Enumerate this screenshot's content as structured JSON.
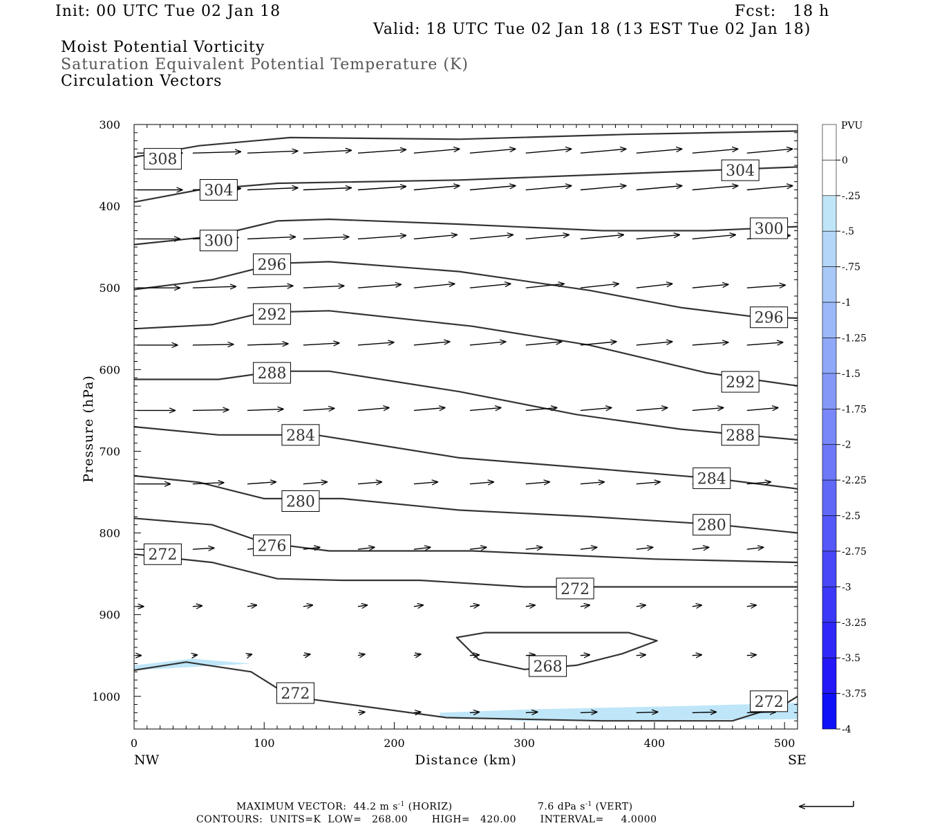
{
  "header": {
    "init": "Init: 00 UTC Tue 02 Jan 18",
    "fcst": "Fcst:   18 h",
    "valid": "Valid: 18 UTC Tue 02 Jan 18 (13 EST Tue 02 Jan 18)",
    "fields": [
      "Moist Potential Vorticity",
      "Saturation Equivalent Potential Temperature (K)",
      "Circulation Vectors"
    ]
  },
  "chart_data": {
    "type": "cross-section",
    "xlabel": "Distance (km)",
    "ylabel": "Pressure (hPa)",
    "xlim": [
      0,
      510
    ],
    "ylim": [
      300,
      1040
    ],
    "x_ticks": [
      "0",
      "100",
      "200",
      "300",
      "400",
      "500"
    ],
    "y_ticks": [
      "300",
      "400",
      "500",
      "600",
      "700",
      "800",
      "900",
      "1000"
    ],
    "x_ends": {
      "left": "NW",
      "right": "SE"
    },
    "colorbar": {
      "unit": "PVU",
      "labels": [
        "0",
        "-.25",
        "-.5",
        "-.75",
        "-1",
        "-1.25",
        "-1.5",
        "-1.75",
        "-2",
        "-2.25",
        "-2.5",
        "-2.75",
        "-3",
        "-3.25",
        "-3.5",
        "-3.75",
        "-4"
      ],
      "colors": [
        "#ffffff",
        "#ffffff",
        "#bfe6f8",
        "#b4d6f8",
        "#a8c8f8",
        "#9cb8f8",
        "#90a8f8",
        "#8498f8",
        "#7888f8",
        "#6c78f8",
        "#6068f8",
        "#5458f8",
        "#4848f8",
        "#3c38f8",
        "#3028f8",
        "#2418f8",
        "#1010f8"
      ]
    },
    "contours": [
      {
        "label": "308",
        "points": [
          [
            0,
            340
          ],
          [
            50,
            326
          ],
          [
            120,
            316
          ],
          [
            250,
            318
          ],
          [
            380,
            312
          ],
          [
            510,
            308
          ]
        ]
      },
      {
        "label": "304",
        "points": [
          [
            0,
            395
          ],
          [
            50,
            380
          ],
          [
            110,
            372
          ],
          [
            250,
            368
          ],
          [
            380,
            360
          ],
          [
            510,
            352
          ]
        ]
      },
      {
        "label": "300",
        "points": [
          [
            0,
            447
          ],
          [
            60,
            437
          ],
          [
            110,
            418
          ],
          [
            150,
            416
          ],
          [
            250,
            422
          ],
          [
            360,
            430
          ],
          [
            440,
            430
          ],
          [
            510,
            425
          ]
        ]
      },
      {
        "label": "296",
        "points": [
          [
            0,
            502
          ],
          [
            60,
            490
          ],
          [
            110,
            470
          ],
          [
            150,
            468
          ],
          [
            250,
            480
          ],
          [
            350,
            503
          ],
          [
            420,
            524
          ],
          [
            480,
            536
          ],
          [
            510,
            537
          ]
        ]
      },
      {
        "label": "292",
        "points": [
          [
            0,
            550
          ],
          [
            60,
            545
          ],
          [
            100,
            530
          ],
          [
            150,
            528
          ],
          [
            260,
            547
          ],
          [
            350,
            570
          ],
          [
            440,
            604
          ],
          [
            510,
            620
          ]
        ]
      },
      {
        "label": "288",
        "points": [
          [
            0,
            612
          ],
          [
            65,
            612
          ],
          [
            110,
            602
          ],
          [
            150,
            602
          ],
          [
            250,
            627
          ],
          [
            340,
            655
          ],
          [
            420,
            673
          ],
          [
            510,
            686
          ]
        ]
      },
      {
        "label": "284",
        "points": [
          [
            0,
            670
          ],
          [
            65,
            680
          ],
          [
            140,
            680
          ],
          [
            250,
            708
          ],
          [
            360,
            722
          ],
          [
            450,
            734
          ],
          [
            510,
            746
          ]
        ]
      },
      {
        "label": "280",
        "points": [
          [
            0,
            730
          ],
          [
            50,
            738
          ],
          [
            100,
            758
          ],
          [
            160,
            758
          ],
          [
            250,
            772
          ],
          [
            350,
            780
          ],
          [
            450,
            790
          ],
          [
            510,
            800
          ]
        ]
      },
      {
        "label": "276",
        "points": [
          [
            0,
            782
          ],
          [
            60,
            790
          ],
          [
            100,
            812
          ],
          [
            150,
            822
          ],
          [
            260,
            822
          ],
          [
            400,
            832
          ],
          [
            510,
            836
          ]
        ]
      },
      {
        "label": "272",
        "points": [
          [
            0,
            826
          ],
          [
            60,
            836
          ],
          [
            110,
            856
          ],
          [
            160,
            858
          ],
          [
            220,
            858
          ],
          [
            300,
            866
          ],
          [
            410,
            866
          ],
          [
            510,
            866
          ]
        ]
      },
      {
        "label": "268",
        "points": [
          [
            248,
            928
          ],
          [
            270,
            922
          ],
          [
            380,
            922
          ],
          [
            402,
            932
          ],
          [
            375,
            948
          ],
          [
            340,
            962
          ],
          [
            300,
            967
          ],
          [
            265,
            955
          ],
          [
            248,
            928
          ]
        ],
        "closed": true
      },
      {
        "label": "272",
        "points": [
          [
            0,
            968
          ],
          [
            40,
            958
          ],
          [
            90,
            970
          ],
          [
            120,
            1000
          ],
          [
            240,
            1026
          ],
          [
            360,
            1030
          ],
          [
            460,
            1030
          ],
          [
            500,
            1010
          ],
          [
            510,
            1000
          ]
        ]
      }
    ],
    "contour_labels": [
      {
        "text": "308",
        "x": 22,
        "p": 342
      },
      {
        "text": "304",
        "x": 65,
        "p": 380
      },
      {
        "text": "304",
        "x": 466,
        "p": 356
      },
      {
        "text": "300",
        "x": 65,
        "p": 442
      },
      {
        "text": "300",
        "x": 488,
        "p": 427
      },
      {
        "text": "296",
        "x": 106,
        "p": 471
      },
      {
        "text": "296",
        "x": 488,
        "p": 536
      },
      {
        "text": "292",
        "x": 106,
        "p": 532
      },
      {
        "text": "292",
        "x": 466,
        "p": 615
      },
      {
        "text": "288",
        "x": 106,
        "p": 604
      },
      {
        "text": "288",
        "x": 466,
        "p": 680
      },
      {
        "text": "284",
        "x": 128,
        "p": 680
      },
      {
        "text": "284",
        "x": 444,
        "p": 733
      },
      {
        "text": "280",
        "x": 128,
        "p": 761
      },
      {
        "text": "280",
        "x": 444,
        "p": 790
      },
      {
        "text": "276",
        "x": 106,
        "p": 815
      },
      {
        "text": "272",
        "x": 22,
        "p": 826
      },
      {
        "text": "272",
        "x": 339,
        "p": 868
      },
      {
        "text": "268",
        "x": 318,
        "p": 963
      },
      {
        "text": "272",
        "x": 124,
        "p": 996
      },
      {
        "text": "272",
        "x": 488,
        "p": 1006
      }
    ],
    "pv_shading": [
      {
        "value": -0.25,
        "points": [
          [
            0,
            962
          ],
          [
            45,
            954
          ],
          [
            90,
            960
          ],
          [
            0,
            968
          ]
        ]
      },
      {
        "value": -0.25,
        "points": [
          [
            235,
            1020
          ],
          [
            300,
            1016
          ],
          [
            420,
            1012
          ],
          [
            510,
            1008
          ],
          [
            510,
            1028
          ],
          [
            300,
            1030
          ],
          [
            235,
            1025
          ]
        ]
      }
    ],
    "vector_rows": [
      {
        "p": 335,
        "x": [
          0,
          43,
          85,
          128,
          170,
          213,
          256,
          299,
          341,
          384,
          427,
          469
        ],
        "u": [
          38,
          40,
          42,
          40,
          40,
          38,
          38,
          38,
          38,
          38,
          38,
          38
        ],
        "w": [
          0,
          -2,
          -3,
          -4,
          -5,
          -6,
          -6,
          -6,
          -6,
          -6,
          -6,
          -6
        ]
      },
      {
        "p": 380,
        "x": [
          0,
          43,
          85,
          128,
          170,
          213,
          256,
          299,
          341,
          384,
          427,
          469
        ],
        "u": [
          38,
          40,
          42,
          40,
          40,
          38,
          38,
          38,
          38,
          38,
          38,
          38
        ],
        "w": [
          0,
          -2,
          -3,
          -3,
          -5,
          -6,
          -6,
          -6,
          -6,
          -6,
          -6,
          -6
        ]
      },
      {
        "p": 440,
        "x": [
          0,
          43,
          85,
          128,
          170,
          213,
          256,
          299,
          341,
          384,
          427,
          469
        ],
        "u": [
          36,
          38,
          40,
          38,
          40,
          36,
          36,
          36,
          36,
          36,
          36,
          36
        ],
        "w": [
          0,
          -2,
          -3,
          -3,
          -5,
          -6,
          -6,
          -6,
          -6,
          -6,
          -6,
          -5
        ]
      },
      {
        "p": 500,
        "x": [
          0,
          43,
          85,
          128,
          170,
          213,
          256,
          299,
          341,
          384,
          427,
          469
        ],
        "u": [
          36,
          36,
          38,
          34,
          36,
          34,
          34,
          32,
          32,
          30,
          30,
          32
        ],
        "w": [
          0,
          -2,
          -3,
          -3,
          -5,
          -6,
          -6,
          -6,
          -6,
          -6,
          -5,
          -4
        ]
      },
      {
        "p": 570,
        "x": [
          0,
          43,
          85,
          128,
          170,
          213,
          256,
          299,
          341,
          384,
          427,
          469
        ],
        "u": [
          34,
          34,
          34,
          30,
          30,
          30,
          30,
          30,
          30,
          30,
          30,
          30
        ],
        "w": [
          0,
          -1,
          -2,
          -3,
          -4,
          -5,
          -5,
          -5,
          -5,
          -5,
          -4,
          -4
        ]
      },
      {
        "p": 650,
        "x": [
          0,
          43,
          85,
          128,
          170,
          213,
          256,
          299,
          341,
          384,
          427,
          469
        ],
        "u": [
          32,
          30,
          30,
          26,
          26,
          26,
          26,
          26,
          26,
          26,
          26,
          26
        ],
        "w": [
          0,
          -1,
          -2,
          -3,
          -4,
          -4,
          -4,
          -4,
          -4,
          -4,
          -4,
          -4
        ]
      },
      {
        "p": 740,
        "x": [
          0,
          43,
          85,
          128,
          170,
          213,
          256,
          299,
          341,
          384,
          427,
          469
        ],
        "u": [
          28,
          26,
          24,
          20,
          20,
          20,
          20,
          20,
          20,
          20,
          20,
          20
        ],
        "w": [
          0,
          -2,
          -3,
          -3,
          -3,
          -3,
          -3,
          -3,
          -3,
          -3,
          -3,
          -3
        ]
      },
      {
        "p": 820,
        "x": [
          0,
          43,
          85,
          128,
          170,
          213,
          256,
          299,
          341,
          384,
          427,
          469
        ],
        "u": [
          24,
          18,
          16,
          14,
          14,
          14,
          14,
          14,
          14,
          14,
          14,
          14
        ],
        "w": [
          0,
          -2,
          -3,
          -3,
          -3,
          -3,
          -3,
          -3,
          -3,
          -3,
          -3,
          -3
        ]
      },
      {
        "p": 890,
        "x": [
          0,
          43,
          85,
          128,
          170,
          213,
          256,
          299,
          341,
          384,
          427,
          469
        ],
        "u": [
          6,
          8,
          8,
          8,
          8,
          8,
          8,
          8,
          8,
          8,
          8,
          8
        ],
        "w": [
          0,
          -1,
          -2,
          -2,
          -2,
          -2,
          -2,
          -2,
          -2,
          -2,
          -2,
          -2
        ]
      },
      {
        "p": 950,
        "x": [
          0,
          43,
          85,
          128,
          170,
          213,
          256,
          299,
          341,
          384,
          427,
          469
        ],
        "u": [
          4,
          4,
          4,
          6,
          6,
          6,
          8,
          8,
          8,
          8,
          8,
          8
        ],
        "w": [
          0,
          -1,
          -2,
          -2,
          -2,
          -2,
          -1,
          -1,
          -1,
          -1,
          -1,
          -1
        ]
      },
      {
        "p": 1020,
        "x": [
          0,
          43,
          85,
          128,
          170,
          213,
          256,
          299,
          341,
          384,
          427,
          469
        ],
        "u": [
          0,
          0,
          0,
          0,
          6,
          6,
          8,
          10,
          14,
          18,
          20,
          24
        ],
        "w": [
          0,
          0,
          0,
          0,
          -1,
          -1,
          -1,
          -1,
          -1,
          -1,
          -1,
          -1
        ]
      }
    ]
  },
  "footer": {
    "max_vector": "MAXIMUM VECTOR:  44.2 m s",
    "max_vector_sup": "-1",
    "max_vector_h": " (HORIZ)",
    "vert": "7.6 dPa s",
    "vert_sup": "-1",
    "vert_tail": " (VERT)",
    "contours": "CONTOURS:  UNITS=K  LOW=   268.00       HIGH=   420.00       INTERVAL=     4.0000"
  }
}
